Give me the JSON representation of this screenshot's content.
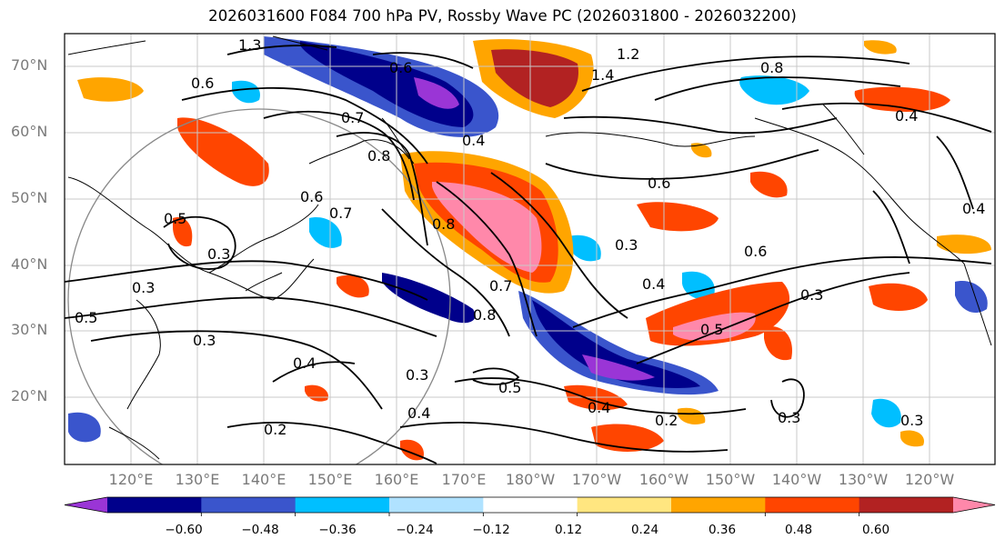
{
  "title": "2026031600 F084 700 hPa PV, Rossby Wave PC (2026031800 - 2026032200)",
  "map": {
    "lat_labels": [
      "70°N",
      "60°N",
      "50°N",
      "40°N",
      "30°N",
      "20°N"
    ],
    "lon_labels": [
      "120°E",
      "130°E",
      "140°E",
      "150°E",
      "160°E",
      "170°E",
      "180°W",
      "170°W",
      "160°W",
      "150°W",
      "140°W",
      "130°W",
      "120°W"
    ],
    "contour_labels": [
      "0.6",
      "0.6",
      "0.5",
      "0.3",
      "0.3",
      "0.3",
      "0.2",
      "0.4",
      "0.4",
      "0.5",
      "0.7",
      "0.8",
      "0.8",
      "0.4",
      "0.7",
      "0.6",
      "0.7",
      "1.2",
      "1.4",
      "0.8",
      "0.4",
      "0.6",
      "0.6",
      "0.3",
      "0.5",
      "0.4",
      "0.3",
      "0.4",
      "0.2",
      "0.3",
      "0.3",
      "0.4",
      "0.5",
      "0.8",
      "0.3",
      "1.3"
    ]
  },
  "colorbar": {
    "ticks": [
      "−0.60",
      "−0.48",
      "−0.36",
      "−0.24",
      "−0.12",
      "0.12",
      "0.24",
      "0.36",
      "0.48",
      "0.60"
    ],
    "colors": [
      "#9a35d6",
      "#00008b",
      "#3a55cc",
      "#00bfff",
      "#b0e2ff",
      "#ffffff",
      "#ffe680",
      "#ffa500",
      "#ff4500",
      "#b22222",
      "#ff88aa"
    ]
  }
}
